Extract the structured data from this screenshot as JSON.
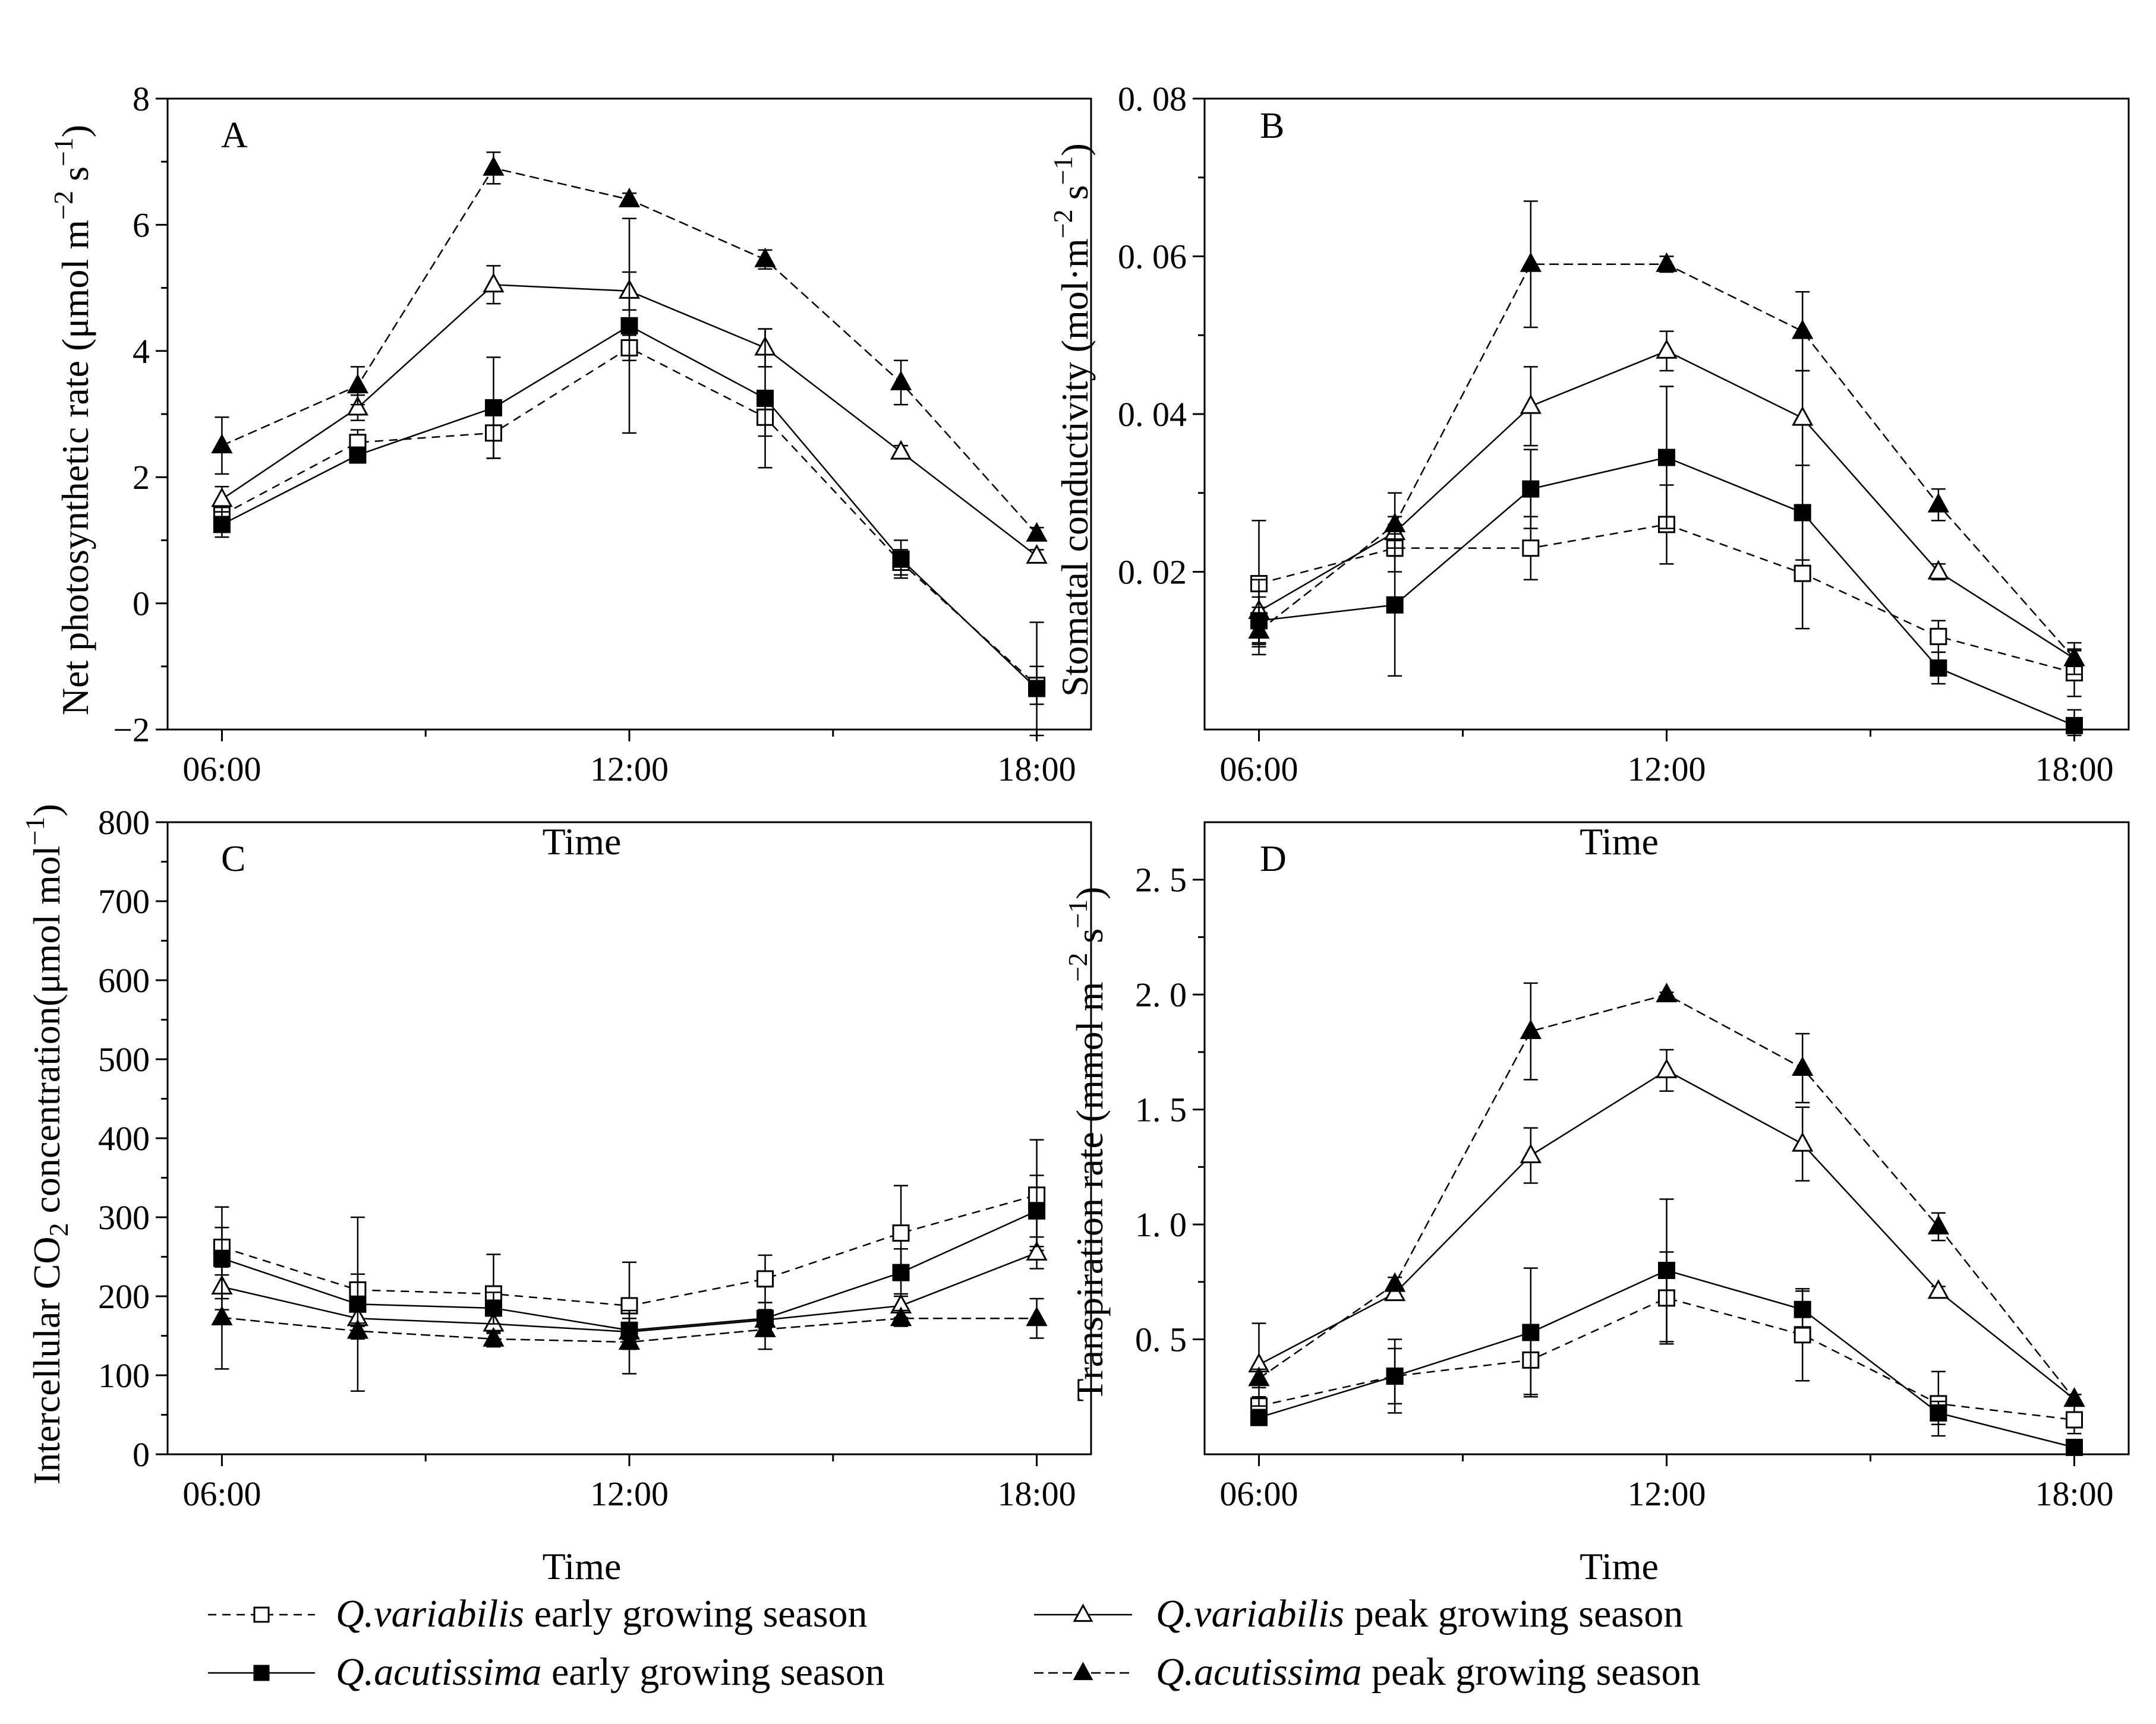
{
  "x_tick_labels": [
    "06:00",
    "12:00",
    "18:00"
  ],
  "legend": [
    {
      "species": "Q.variabilis",
      "season": " early growing season",
      "marker": "open-square"
    },
    {
      "species": "Q.variabilis",
      "season": " peak growing season",
      "marker": "open-triangle"
    },
    {
      "species": "Q.acutissima",
      "season": " early growing season",
      "marker": "filled-square"
    },
    {
      "species": "Q.acutissima",
      "season": " peak growing season",
      "marker": "filled-triangle"
    }
  ],
  "colors": {
    "line": "#000000",
    "axis": "#000000",
    "background": "#ffffff"
  },
  "chart_data": [
    {
      "type": "line",
      "panel": "A",
      "xlabel": "Time",
      "ylabel": "Net photosynthetic rate (μmol m−2 s−1)",
      "ylabel_parts": {
        "main": "Net photosynthetic rate (μmol m",
        "exp1": "−2",
        "mid": " s",
        "exp2": "−1",
        "end": ")"
      },
      "ylim": [
        -2,
        8
      ],
      "yticks": [
        -2,
        0,
        2,
        4,
        6,
        8
      ],
      "ytick_labels": [
        "−2",
        "0",
        "2",
        "4",
        "6",
        "8"
      ],
      "x": [
        6,
        8,
        10,
        12,
        14,
        16,
        18
      ],
      "series": [
        {
          "name": "Q.variabilis early growing season",
          "values": [
            1.4,
            2.55,
            2.7,
            4.05,
            2.95,
            0.65,
            -1.3
          ],
          "errors": [
            0.2,
            0.2,
            0.4,
            0.2,
            0.3,
            0.2,
            0.3
          ]
        },
        {
          "name": "Q.variabilis peak growing season",
          "values": [
            1.65,
            3.1,
            5.05,
            4.95,
            4.05,
            2.4,
            0.75
          ],
          "errors": [
            0.2,
            0.2,
            0.3,
            0.3,
            0.3,
            0.1,
            0.1
          ]
        },
        {
          "name": "Q.acutissima early growing season",
          "values": [
            1.25,
            2.35,
            3.1,
            4.4,
            3.25,
            0.7,
            -1.35
          ],
          "errors": [
            0.2,
            0.1,
            0.8,
            1.7,
            1.1,
            0.3,
            1.05
          ]
        },
        {
          "name": "Q.acutissima peak growing season",
          "values": [
            2.5,
            3.45,
            6.9,
            6.4,
            5.45,
            3.5,
            1.1
          ],
          "errors": [
            0.45,
            0.3,
            0.25,
            0.1,
            0.15,
            0.35,
            0.1
          ]
        }
      ]
    },
    {
      "type": "line",
      "panel": "B",
      "xlabel": "Time",
      "ylabel": "Stomatal conductivity (mol·m−2 s−1)",
      "ylabel_parts": {
        "main": "Stomatal conductivity (mol·m",
        "exp1": "−2",
        "mid": " s",
        "exp2": "−1",
        "end": ")"
      },
      "ylim": [
        0,
        0.08
      ],
      "yticks": [
        0.02,
        0.04,
        0.06,
        0.08
      ],
      "ytick_labels": [
        "0. 02",
        "0. 04",
        "0. 06",
        "0. 08"
      ],
      "x": [
        6,
        8,
        10,
        12,
        14,
        16,
        18
      ],
      "series": [
        {
          "name": "Q.variabilis early growing season",
          "values": [
            0.0185,
            0.023,
            0.023,
            0.026,
            0.0198,
            0.0118,
            0.0072
          ],
          "errors": [
            0.008,
            0.003,
            0.004,
            0.005,
            0.007,
            0.002,
            0.003
          ]
        },
        {
          "name": "Q.variabilis peak growing season",
          "values": [
            0.015,
            0.025,
            0.041,
            0.048,
            0.0395,
            0.02,
            0.009
          ],
          "errors": [
            0.004,
            0.002,
            0.005,
            0.0025,
            0.006,
            0.001,
            0.001
          ]
        },
        {
          "name": "Q.acutissima early growing season",
          "values": [
            0.0138,
            0.0158,
            0.0305,
            0.0345,
            0.0275,
            0.0078,
            0.0005
          ],
          "errors": [
            0.003,
            0.009,
            0.005,
            0.009,
            0.006,
            0.002,
            0.002
          ]
        },
        {
          "name": "Q.acutissima peak growing season",
          "values": [
            0.0125,
            0.026,
            0.059,
            0.059,
            0.0505,
            0.0285,
            0.009
          ],
          "errors": [
            0.003,
            0.004,
            0.008,
            0.001,
            0.005,
            0.002,
            0.002
          ]
        }
      ]
    },
    {
      "type": "line",
      "panel": "C",
      "xlabel": "Time",
      "ylabel": "Intercellular CO2 concentration(μmol mol−1)",
      "ylabel_parts": {
        "main": "Intercellular CO",
        "sub": "2",
        "mid": " concentration(μmol mol",
        "exp": "−1",
        "end": ")"
      },
      "ylim": [
        0,
        800
      ],
      "yticks": [
        0,
        100,
        200,
        300,
        400,
        500,
        600,
        700,
        800
      ],
      "ytick_labels": [
        "0",
        "100",
        "200",
        "300",
        "400",
        "500",
        "600",
        "700",
        "800"
      ],
      "x": [
        6,
        8,
        10,
        12,
        14,
        16,
        18
      ],
      "series": [
        {
          "name": "Q.variabilis early growing season",
          "values": [
            262,
            208,
            203,
            188,
            222,
            280,
            328
          ],
          "errors": [
            25,
            20,
            50,
            55,
            30,
            60,
            70
          ]
        },
        {
          "name": "Q.variabilis peak growing season",
          "values": [
            212,
            172,
            165,
            155,
            170,
            188,
            255
          ],
          "errors": [
            15,
            10,
            10,
            10,
            10,
            15,
            20
          ]
        },
        {
          "name": "Q.acutissima early growing season",
          "values": [
            248,
            190,
            185,
            157,
            172,
            230,
            308
          ],
          "errors": [
            65,
            110,
            20,
            15,
            20,
            30,
            45
          ]
        },
        {
          "name": "Q.acutissima peak growing season",
          "values": [
            173,
            156,
            146,
            142,
            158,
            172,
            172
          ],
          "errors": [
            65,
            10,
            10,
            40,
            25,
            10,
            25
          ]
        }
      ]
    },
    {
      "type": "line",
      "panel": "D",
      "xlabel": "Time",
      "ylabel": "Transpiration rate (mmol m−2 s−1)",
      "ylabel_parts": {
        "main": "Transpiration rate (mmol m",
        "exp1": "−2",
        "mid": " s",
        "exp2": "−1",
        "end": ")"
      },
      "ylim": [
        0,
        2.75
      ],
      "yticks": [
        0.5,
        1.0,
        1.5,
        2.0,
        2.5
      ],
      "ytick_labels": [
        "0. 5",
        "1. 0",
        "1. 5",
        "2. 0",
        "2. 5"
      ],
      "x": [
        6,
        8,
        10,
        12,
        14,
        16,
        18
      ],
      "series": [
        {
          "name": "Q.variabilis early growing season",
          "values": [
            0.21,
            0.34,
            0.41,
            0.68,
            0.52,
            0.22,
            0.15
          ],
          "errors": [
            0.04,
            0.16,
            0.15,
            0.2,
            0.2,
            0.14,
            0.06
          ]
        },
        {
          "name": "Q.variabilis peak growing season",
          "values": [
            0.39,
            0.7,
            1.3,
            1.67,
            1.35,
            0.71,
            0.24
          ],
          "errors": [
            0.18,
            0.03,
            0.12,
            0.09,
            0.16,
            0.02,
            0.02
          ]
        },
        {
          "name": "Q.acutissima early growing season",
          "values": [
            0.16,
            0.34,
            0.53,
            0.8,
            0.63,
            0.18,
            0.03
          ],
          "errors": [
            0.03,
            0.12,
            0.28,
            0.31,
            0.08,
            0.05,
            0.02
          ]
        },
        {
          "name": "Q.acutissima peak growing season",
          "values": [
            0.33,
            0.74,
            1.84,
            2.0,
            1.68,
            0.99,
            0.24
          ],
          "errors": [
            0.04,
            0.03,
            0.21,
            0.01,
            0.15,
            0.06,
            0.02
          ]
        }
      ]
    }
  ]
}
